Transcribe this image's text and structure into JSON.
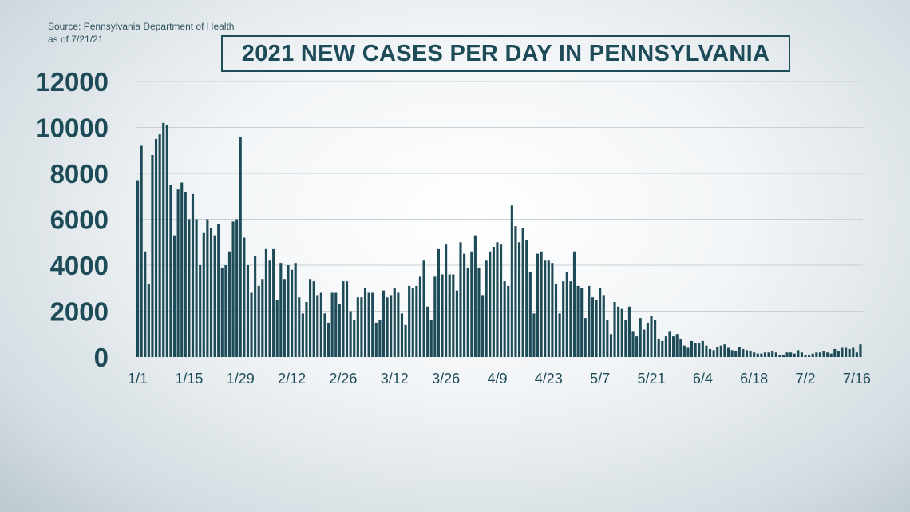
{
  "source": {
    "line1": "Source: Pennsylvania Department of Health",
    "line2": "as of 7/21/21"
  },
  "chart_data": {
    "type": "bar",
    "title": "2021 NEW CASES PER DAY IN PENNSYLVANIA",
    "xlabel": "",
    "ylabel": "",
    "ylim": [
      0,
      12000
    ],
    "yticks": [
      0,
      2000,
      4000,
      6000,
      8000,
      10000,
      12000
    ],
    "grid": true,
    "xtick_labels": [
      {
        "label": "1/1",
        "index": 0
      },
      {
        "label": "1/15",
        "index": 14
      },
      {
        "label": "1/29",
        "index": 28
      },
      {
        "label": "2/12",
        "index": 42
      },
      {
        "label": "2/26",
        "index": 56
      },
      {
        "label": "3/12",
        "index": 70
      },
      {
        "label": "3/26",
        "index": 84
      },
      {
        "label": "4/9",
        "index": 98
      },
      {
        "label": "4/23",
        "index": 112
      },
      {
        "label": "5/7",
        "index": 126
      },
      {
        "label": "5/21",
        "index": 140
      },
      {
        "label": "6/4",
        "index": 154
      },
      {
        "label": "6/18",
        "index": 168
      },
      {
        "label": "7/2",
        "index": 182
      },
      {
        "label": "7/16",
        "index": 196
      }
    ],
    "colors": {
      "bar": "#1d4c58",
      "grid": "#c7d0d4",
      "text": "#1d4c58"
    },
    "values": [
      7700,
      9200,
      4600,
      3200,
      8800,
      9500,
      9700,
      10200,
      10100,
      7500,
      5300,
      7300,
      7600,
      7200,
      6000,
      7100,
      6000,
      4000,
      5400,
      6000,
      5600,
      5300,
      5800,
      3900,
      4000,
      4600,
      5900,
      6000,
      9600,
      5200,
      4000,
      2800,
      4400,
      3100,
      3400,
      4700,
      4200,
      4700,
      2500,
      4100,
      3400,
      4000,
      3800,
      4100,
      2600,
      1900,
      2400,
      3400,
      3300,
      2700,
      2800,
      1900,
      1500,
      2800,
      2800,
      2300,
      3300,
      3300,
      2000,
      1600,
      2600,
      2600,
      3000,
      2800,
      2800,
      1500,
      1600,
      2900,
      2600,
      2700,
      3000,
      2800,
      1900,
      1400,
      3100,
      3000,
      3100,
      3500,
      4200,
      2200,
      1600,
      3500,
      4700,
      3600,
      4900,
      3600,
      3600,
      2900,
      5000,
      4500,
      3900,
      4600,
      5300,
      3900,
      2700,
      4200,
      4600,
      4800,
      5000,
      4900,
      3300,
      3100,
      6600,
      5700,
      5000,
      5600,
      5100,
      3700,
      1900,
      4500,
      4600,
      4200,
      4200,
      4100,
      3200,
      1900,
      3300,
      3700,
      3300,
      4600,
      3100,
      3000,
      1700,
      3100,
      2600,
      2500,
      3000,
      2700,
      1600,
      1000,
      2400,
      2200,
      2100,
      1600,
      2200,
      1100,
      900,
      1700,
      1200,
      1500,
      1800,
      1600,
      800,
      700,
      900,
      1100,
      900,
      1000,
      800,
      500,
      400,
      700,
      600,
      600,
      700,
      500,
      350,
      300,
      450,
      500,
      550,
      400,
      300,
      250,
      450,
      350,
      300,
      250,
      200,
      150,
      150,
      200,
      200,
      250,
      200,
      100,
      100,
      200,
      200,
      150,
      300,
      200,
      100,
      100,
      150,
      200,
      200,
      250,
      200,
      150,
      350,
      250,
      400,
      400,
      350,
      400,
      200,
      550
    ]
  }
}
